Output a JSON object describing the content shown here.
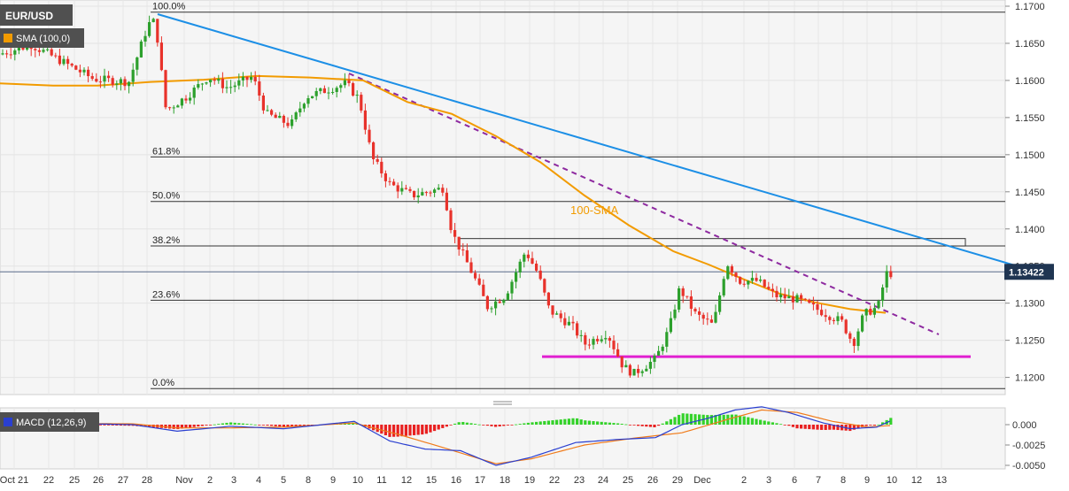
{
  "chart_data": {
    "type": "candlestick",
    "symbol": "EUR/USD",
    "indicator_label": "SMA (100,0)",
    "sma_annotation": "100-SMA",
    "current_price_label": "1.13422",
    "y_ticks": [
      "1.1700",
      "1.1650",
      "1.1600",
      "1.1550",
      "1.1500",
      "1.1450",
      "1.1400",
      "1.1350",
      "1.1300",
      "1.1250",
      "1.1200"
    ],
    "y_tick_values": [
      1.17,
      1.165,
      1.16,
      1.155,
      1.15,
      1.145,
      1.14,
      1.135,
      1.13,
      1.125,
      1.12
    ],
    "x_ticks": [
      "Oct 21",
      "22",
      "25",
      "26",
      "27",
      "28",
      "Nov",
      "2",
      "3",
      "4",
      "5",
      "8",
      "9",
      "10",
      "11",
      "12",
      "15",
      "16",
      "17",
      "18",
      "19",
      "22",
      "23",
      "24",
      "25",
      "26",
      "29",
      "Dec",
      "2",
      "3",
      "6",
      "7",
      "8",
      "9",
      "10",
      "12",
      "13"
    ],
    "fib_levels": [
      {
        "label": "100.0%",
        "value": 1.1692
      },
      {
        "label": "61.8%",
        "value": 1.1497
      },
      {
        "label": "50.0%",
        "value": 1.1437
      },
      {
        "label": "38.2%",
        "value": 1.1377
      },
      {
        "label": "23.6%",
        "value": 1.1304
      },
      {
        "label": "0.0%",
        "value": 1.1185
      }
    ],
    "current_price": 1.13422,
    "resistance_zone": [
      1.1377,
      1.1387
    ],
    "support_line": 1.1228,
    "macd_label": "MACD (12,26,9)",
    "macd_ticks": [
      "0.000",
      "-0.0025",
      "-0.0050"
    ],
    "macd_tick_values": [
      0.0,
      -0.0025,
      -0.005
    ],
    "colors": {
      "up": "#2ca02c",
      "down": "#e8322b",
      "sma": "#f29b00",
      "trend_solid": "#1c8fe6",
      "trend_dashed": "#8e2aa0",
      "support": "#e020d0",
      "price_box": "#1f3552",
      "macd": "#2a3fd0",
      "signal": "#f07b1a"
    }
  }
}
